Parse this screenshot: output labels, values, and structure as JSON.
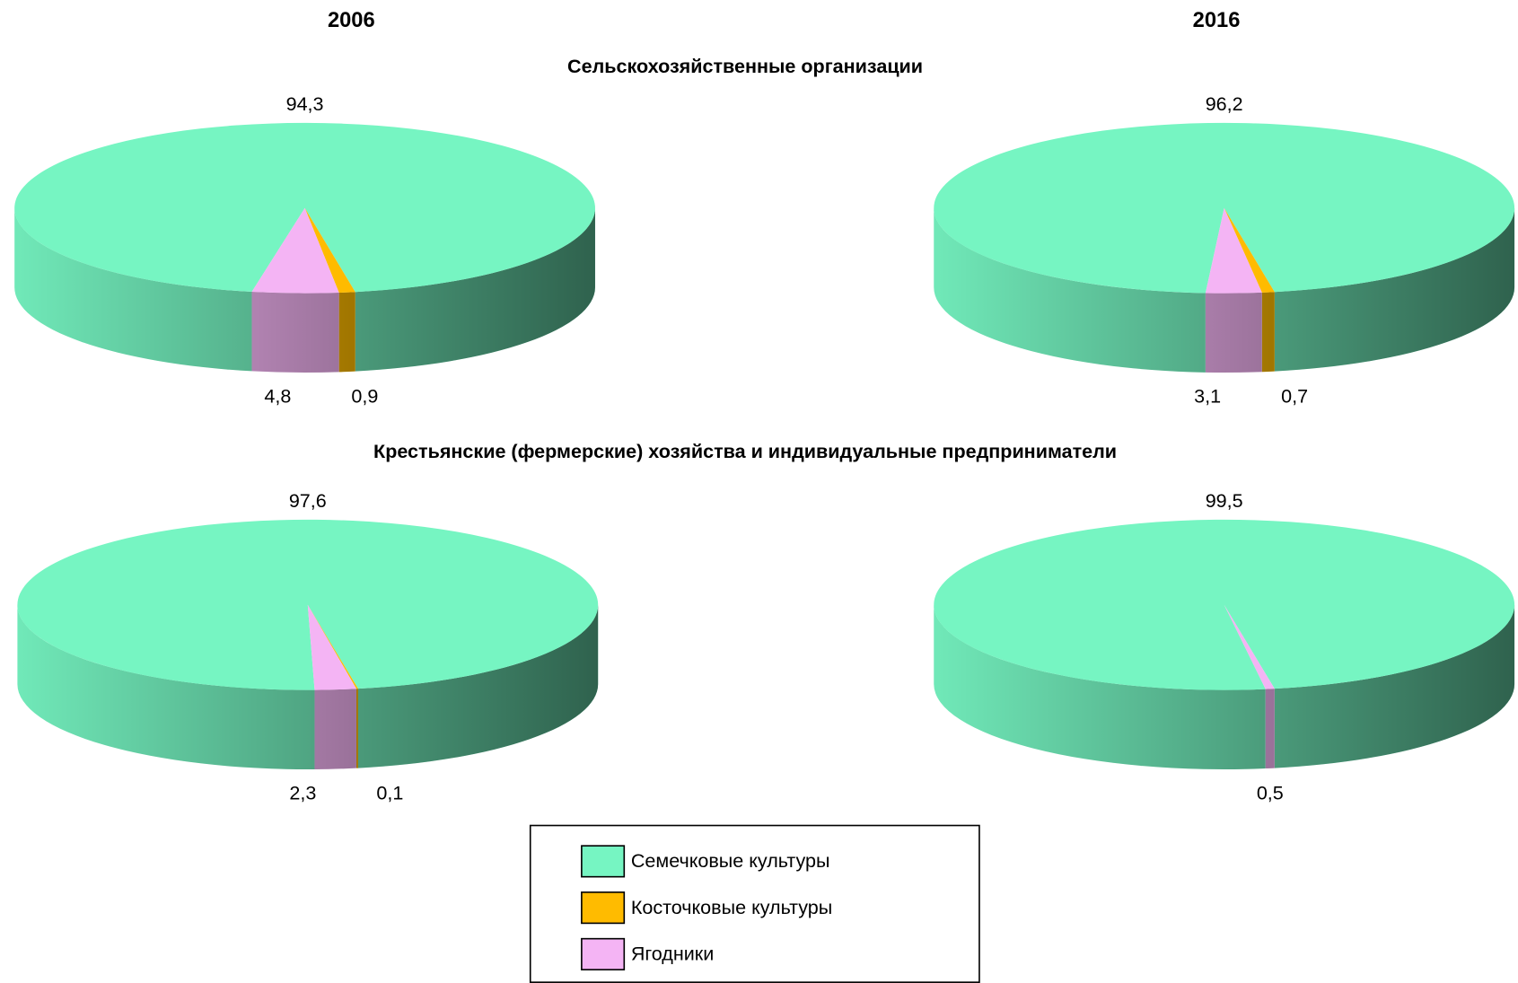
{
  "column_titles": [
    "2006",
    "2016"
  ],
  "row_titles": [
    "Сельскохозяйственные организации",
    "Крестьянские (фермерские) хозяйства и индивидуальные предприниматели"
  ],
  "categories": [
    "Семечковые культуры",
    "Косточковые культуры",
    "Ягодники"
  ],
  "colors": [
    "#76f5c2",
    "#ffbb00",
    "#f4b4f4"
  ],
  "chart_data": [
    {
      "type": "pie",
      "values": [
        94.3,
        0.9,
        4.8
      ],
      "value_labels": [
        "94,3",
        "0,9",
        "4,8"
      ]
    },
    {
      "type": "pie",
      "values": [
        96.2,
        0.7,
        3.1
      ],
      "value_labels": [
        "96,2",
        "0,7",
        "3,1"
      ]
    },
    {
      "type": "pie",
      "values": [
        97.6,
        0.1,
        2.3
      ],
      "value_labels": [
        "97,6",
        "0,1",
        "2,3"
      ]
    },
    {
      "type": "pie",
      "values": [
        99.5,
        null,
        0.5
      ],
      "value_labels": [
        "99,5",
        null,
        "0,5"
      ]
    }
  ]
}
